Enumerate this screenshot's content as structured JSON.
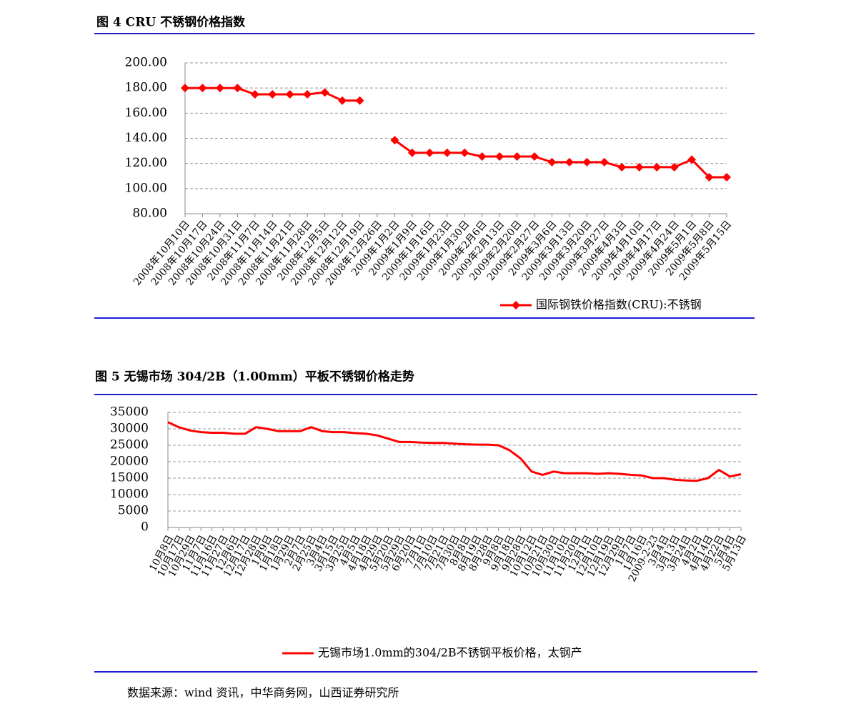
{
  "chart_data": [
    {
      "type": "line",
      "title": "图 4 CRU 不锈钢价格指数",
      "categories": [
        "2008年10月10日",
        "2008年10月17日",
        "2008年10月24日",
        "2008年10月31日",
        "2008年11月7日",
        "2008年11月14日",
        "2008年11月21日",
        "2008年11月28日",
        "2008年12月5日",
        "2008年12月12日",
        "2008年12月19日",
        "2008年12月26日",
        "2009年1月2日",
        "2009年1月9日",
        "2009年1月16日",
        "2009年1月23日",
        "2009年1月30日",
        "2009年2月6日",
        "2009年2月13日",
        "2009年2月20日",
        "2009年2月27日",
        "2009年3月6日",
        "2009年3月13日",
        "2009年3月20日",
        "2009年3月27日",
        "2009年4月3日",
        "2009年4月10日",
        "2009年4月17日",
        "2009年4月24日",
        "2009年5月1日",
        "2009年5月8日",
        "2009年5月15日"
      ],
      "series": [
        {
          "name": "国际钢铁价格指数(CRU):不锈钢",
          "color": "#ff0000",
          "marker": "diamond",
          "values": [
            180,
            180,
            180,
            180,
            175,
            175,
            175,
            175,
            176.5,
            170,
            170,
            null,
            138.5,
            128.5,
            128.5,
            128.5,
            128.5,
            125.5,
            125.5,
            125.5,
            125.5,
            121,
            121,
            121,
            121,
            117,
            117,
            117,
            117,
            123,
            109,
            109
          ]
        }
      ],
      "ylim": [
        80,
        200
      ],
      "yticks": [
        {
          "value": 80,
          "label": "80.00"
        },
        {
          "value": 100,
          "label": "100.00"
        },
        {
          "value": 120,
          "label": "120.00"
        },
        {
          "value": 140,
          "label": "140.00"
        },
        {
          "value": 160,
          "label": "160.00"
        },
        {
          "value": 180,
          "label": "180.00"
        },
        {
          "value": 200,
          "label": "200.00"
        }
      ],
      "grid": true,
      "legend": "bottom-right"
    },
    {
      "type": "line",
      "title": "图 5 无锡市场 304/2B（1.00mm）平板不锈钢价格走势",
      "categories": [
        "10月8日",
        "10月17日",
        "10月29日",
        "11月7日",
        "11月16日",
        "11月27日",
        "12月6日",
        "12月17日",
        "12月28日",
        "1月9日",
        "1月18日",
        "1月29日",
        "2月7日",
        "2月25日",
        "3月4日",
        "3月15日",
        "3月25日",
        "4月5日",
        "4月18日",
        "4月29日",
        "5月20日",
        "5月29日",
        "6月20日",
        "7月1日",
        "7月10日",
        "7月21日",
        "7月30日",
        "8月8日",
        "8月19日",
        "8月28日",
        "9月8日",
        "9月18日",
        "9月28日",
        "10月12日",
        "10月21日",
        "10月30日",
        "11月10日",
        "11月20日",
        "12月1日",
        "12月10日",
        "12月19日",
        "12月29日",
        "1月7日",
        "1月16日",
        "2009-2-23",
        "3月4日",
        "3月13日",
        "3月24日",
        "4月2日",
        "4月14日",
        "4月22日",
        "5月4日",
        "5月13日"
      ],
      "series": [
        {
          "name": "无锡市场1.0mm的304/2B不锈钢平板价格，太钢产",
          "color": "#ff0000",
          "values": [
            32000,
            30500,
            29500,
            29000,
            28800,
            28800,
            28500,
            28500,
            30500,
            30000,
            29300,
            29300,
            29300,
            30500,
            29300,
            29000,
            29000,
            28700,
            28500,
            28000,
            27000,
            26000,
            26000,
            25800,
            25700,
            25700,
            25500,
            25300,
            25200,
            25200,
            25000,
            23500,
            21000,
            17000,
            16000,
            17000,
            16500,
            16500,
            16500,
            16300,
            16500,
            16300,
            16000,
            15800,
            15000,
            15000,
            14500,
            14300,
            14200,
            15000,
            17500,
            15500,
            16200
          ]
        }
      ],
      "ylim": [
        0,
        35000
      ],
      "yticks": [
        0,
        5000,
        10000,
        15000,
        20000,
        25000,
        30000,
        35000
      ],
      "grid": true,
      "legend": "bottom"
    }
  ],
  "source": "数据来源：wind 资讯，中华商务网，山西证券研究所"
}
